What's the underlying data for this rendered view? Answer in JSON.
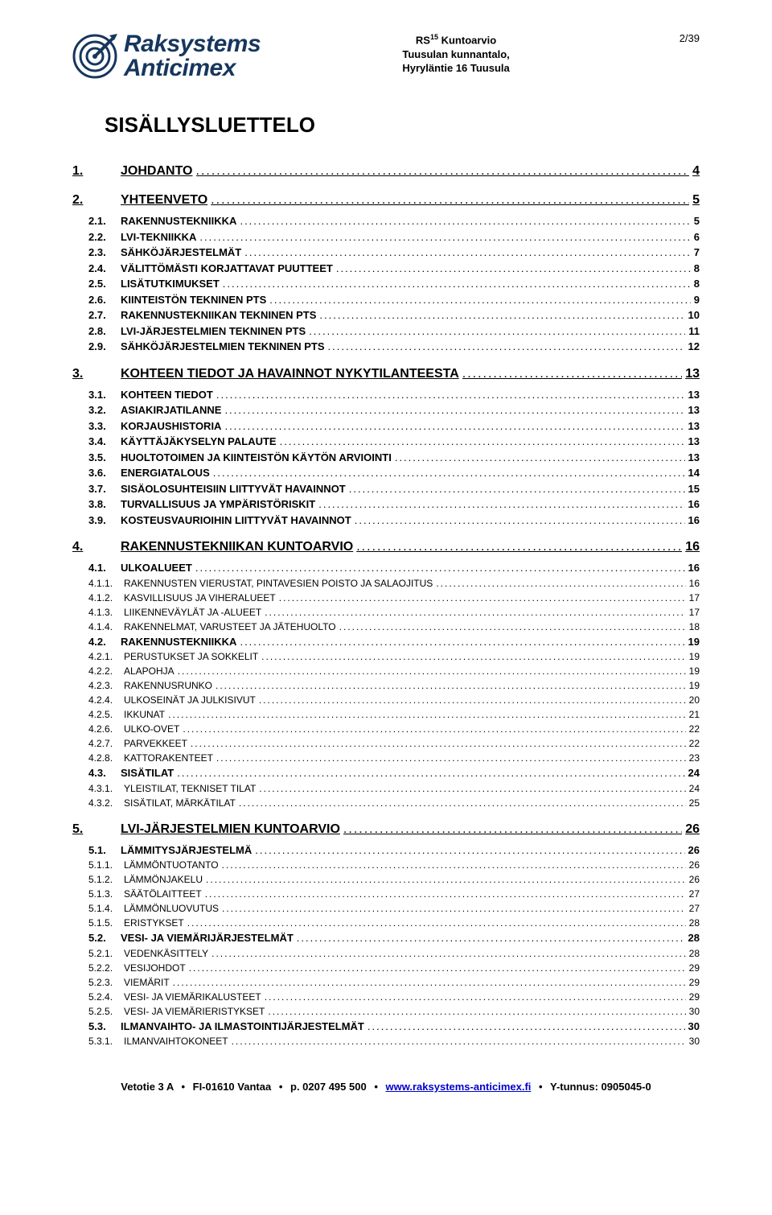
{
  "header": {
    "logo_line1": "Raksystems",
    "logo_line2": "Anticimex",
    "logo_color": "#17365d",
    "doc_type_prefix": "RS",
    "doc_type_sup": "15",
    "doc_type_suffix": " Kuntoarvio",
    "line2": "Tuusulan kunnantalo,",
    "line3": "Hyryläntie 16 Tuusula",
    "page_indicator": "2/39"
  },
  "title": "SISÄLLYSLUETTELO",
  "toc": [
    {
      "lvl": 1,
      "num": "1.",
      "label": "JOHDANTO",
      "page": "4"
    },
    {
      "lvl": 1,
      "num": "2.",
      "label": "YHTEENVETO",
      "page": "5"
    },
    {
      "lvl": 2,
      "num": "2.1.",
      "label": "RAKENNUSTEKNIIKKA",
      "page": "5"
    },
    {
      "lvl": 2,
      "num": "2.2.",
      "label": "LVI-TEKNIIKKA",
      "page": "6"
    },
    {
      "lvl": 2,
      "num": "2.3.",
      "label": "SÄHKÖJÄRJESTELMÄT",
      "page": "7"
    },
    {
      "lvl": 2,
      "num": "2.4.",
      "label": "VÄLITTÖMÄSTI KORJATTAVAT PUUTTEET",
      "page": "8"
    },
    {
      "lvl": 2,
      "num": "2.5.",
      "label": "LISÄTUTKIMUKSET",
      "page": "8"
    },
    {
      "lvl": 2,
      "num": "2.6.",
      "label": "KIINTEISTÖN TEKNINEN PTS",
      "page": "9"
    },
    {
      "lvl": 2,
      "num": "2.7.",
      "label": "RAKENNUSTEKNIIKAN TEKNINEN PTS",
      "page": "10"
    },
    {
      "lvl": 2,
      "num": "2.8.",
      "label": "LVI-JÄRJESTELMIEN TEKNINEN PTS",
      "page": "11"
    },
    {
      "lvl": 2,
      "num": "2.9.",
      "label": "SÄHKÖJÄRJESTELMIEN TEKNINEN PTS",
      "page": "12"
    },
    {
      "lvl": 1,
      "num": "3.",
      "label": "KOHTEEN TIEDOT JA HAVAINNOT NYKYTILANTEESTA",
      "page": "13"
    },
    {
      "lvl": 2,
      "num": "3.1.",
      "label": "KOHTEEN TIEDOT",
      "page": "13"
    },
    {
      "lvl": 2,
      "num": "3.2.",
      "label": "ASIAKIRJATILANNE",
      "page": "13"
    },
    {
      "lvl": 2,
      "num": "3.3.",
      "label": "KORJAUSHISTORIA",
      "page": "13"
    },
    {
      "lvl": 2,
      "num": "3.4.",
      "label": "KÄYTTÄJÄKYSELYN PALAUTE",
      "page": "13"
    },
    {
      "lvl": 2,
      "num": "3.5.",
      "label": "HUOLTOTOIMEN JA KIINTEISTÖN KÄYTÖN ARVIOINTI",
      "page": "13"
    },
    {
      "lvl": 2,
      "num": "3.6.",
      "label": "ENERGIATALOUS",
      "page": "14"
    },
    {
      "lvl": 2,
      "num": "3.7.",
      "label": "SISÄOLOSUHTEISIIN LIITTYVÄT HAVAINNOT",
      "page": "15"
    },
    {
      "lvl": 2,
      "num": "3.8.",
      "label": "TURVALLISUUS JA YMPÄRISTÖRISKIT",
      "page": "16"
    },
    {
      "lvl": 2,
      "num": "3.9.",
      "label": "KOSTEUSVAURIOIHIN LIITTYVÄT HAVAINNOT",
      "page": "16"
    },
    {
      "lvl": 1,
      "num": "4.",
      "label": "RAKENNUSTEKNIIKAN KUNTOARVIO",
      "page": "16"
    },
    {
      "lvl": 2,
      "num": "4.1.",
      "label": "ULKOALUEET",
      "page": "16"
    },
    {
      "lvl": 3,
      "num": "4.1.1.",
      "label": "RAKENNUSTEN VIERUSTAT, PINTAVESIEN POISTO JA SALAOJITUS",
      "page": "16"
    },
    {
      "lvl": 3,
      "num": "4.1.2.",
      "label": "KASVILLISUUS JA VIHERALUEET",
      "page": "17"
    },
    {
      "lvl": 3,
      "num": "4.1.3.",
      "label": "LIIKENNEVÄYLÄT JA -ALUEET",
      "page": "17"
    },
    {
      "lvl": 3,
      "num": "4.1.4.",
      "label": "RAKENNELMAT, VARUSTEET JA JÄTEHUOLTO",
      "page": "18"
    },
    {
      "lvl": 2,
      "num": "4.2.",
      "label": "RAKENNUSTEKNIIKKA",
      "page": "19"
    },
    {
      "lvl": 3,
      "num": "4.2.1.",
      "label": "PERUSTUKSET JA SOKKELIT",
      "page": "19"
    },
    {
      "lvl": 3,
      "num": "4.2.2.",
      "label": "ALAPOHJA",
      "page": "19"
    },
    {
      "lvl": 3,
      "num": "4.2.3.",
      "label": "RAKENNUSRUNKO",
      "page": "19"
    },
    {
      "lvl": 3,
      "num": "4.2.4.",
      "label": "ULKOSEINÄT JA JULKISIVUT",
      "page": "20"
    },
    {
      "lvl": 3,
      "num": "4.2.5.",
      "label": "IKKUNAT",
      "page": "21"
    },
    {
      "lvl": 3,
      "num": "4.2.6.",
      "label": "ULKO-OVET",
      "page": "22"
    },
    {
      "lvl": 3,
      "num": "4.2.7.",
      "label": "PARVEKKEET",
      "page": "22"
    },
    {
      "lvl": 3,
      "num": "4.2.8.",
      "label": "KATTORAKENTEET",
      "page": "23"
    },
    {
      "lvl": 2,
      "num": "4.3.",
      "label": "SISÄTILAT",
      "page": "24"
    },
    {
      "lvl": 3,
      "num": "4.3.1.",
      "label": "YLEISTILAT, TEKNISET TILAT",
      "page": "24"
    },
    {
      "lvl": 3,
      "num": "4.3.2.",
      "label": "SISÄTILAT, MÄRKÄTILAT",
      "page": "25"
    },
    {
      "lvl": 1,
      "num": "5.",
      "label": "LVI-JÄRJESTELMIEN KUNTOARVIO",
      "page": "26"
    },
    {
      "lvl": 2,
      "num": "5.1.",
      "label": "LÄMMITYSJÄRJESTELMÄ",
      "page": "26"
    },
    {
      "lvl": 3,
      "num": "5.1.1.",
      "label": "LÄMMÖNTUOTANTO",
      "page": "26"
    },
    {
      "lvl": 3,
      "num": "5.1.2.",
      "label": "LÄMMÖNJAKELU",
      "page": "26"
    },
    {
      "lvl": 3,
      "num": "5.1.3.",
      "label": "SÄÄTÖLAITTEET",
      "page": "27"
    },
    {
      "lvl": 3,
      "num": "5.1.4.",
      "label": "LÄMMÖNLUOVUTUS",
      "page": "27"
    },
    {
      "lvl": 3,
      "num": "5.1.5.",
      "label": "ERISTYKSET",
      "page": "28"
    },
    {
      "lvl": 2,
      "num": "5.2.",
      "label": "VESI- JA VIEMÄRIJÄRJESTELMÄT",
      "page": "28"
    },
    {
      "lvl": 3,
      "num": "5.2.1.",
      "label": "VEDENKÄSITTELY",
      "page": "28"
    },
    {
      "lvl": 3,
      "num": "5.2.2.",
      "label": "VESIJOHDOT",
      "page": "29"
    },
    {
      "lvl": 3,
      "num": "5.2.3.",
      "label": "VIEMÄRIT",
      "page": "29"
    },
    {
      "lvl": 3,
      "num": "5.2.4.",
      "label": "VESI- JA VIEMÄRIKALUSTEET",
      "page": "29"
    },
    {
      "lvl": 3,
      "num": "5.2.5.",
      "label": "VESI- JA VIEMÄRIERISTYKSET",
      "page": "30"
    },
    {
      "lvl": 2,
      "num": "5.3.",
      "label": "ILMANVAIHTO- JA ILMASTOINTIJÄRJESTELMÄT",
      "page": "30"
    },
    {
      "lvl": 3,
      "num": "5.3.1.",
      "label": "ILMANVAIHTOKONEET",
      "page": "30"
    }
  ],
  "footer": {
    "address": "Vetotie 3 A",
    "sep": "•",
    "postal": "FI-01610 Vantaa",
    "phone": "p. 0207 495 500",
    "url_text": "www.raksystems-anticimex.fi",
    "ytunnus": "Y-tunnus: 0905045-0"
  }
}
